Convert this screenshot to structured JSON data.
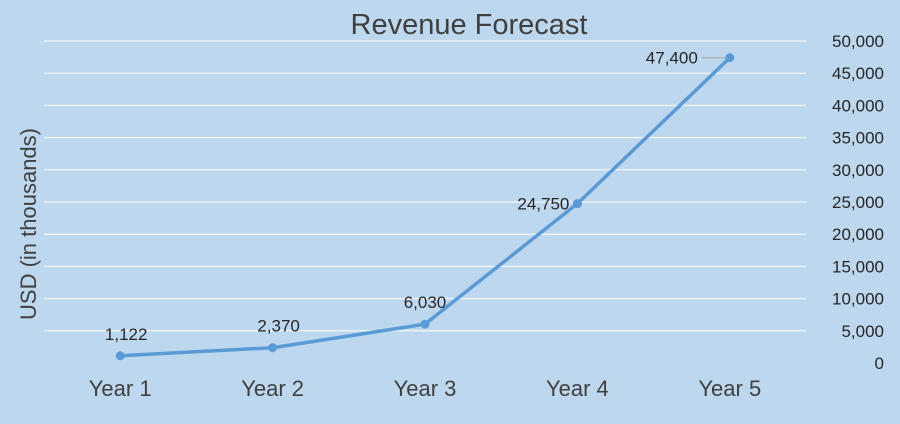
{
  "chart_data": {
    "type": "line",
    "title": "Revenue Forecast",
    "xlabel": "",
    "ylabel": "USD (in thousands)",
    "categories": [
      "Year 1",
      "Year 2",
      "Year 3",
      "Year 4",
      "Year 5"
    ],
    "series": [
      {
        "values": [
          1122,
          2370,
          6030,
          24750,
          47400
        ],
        "labels": [
          "1,122",
          "2,370",
          "6,030",
          "24,750",
          "47,400"
        ],
        "color": "#5b9bd5"
      }
    ],
    "ylim": [
      0,
      50000
    ],
    "yticks": [
      0,
      5000,
      10000,
      15000,
      20000,
      25000,
      30000,
      35000,
      40000,
      45000,
      50000
    ],
    "ytick_labels": [
      "0",
      "5,000",
      "10,000",
      "15,000",
      "20,000",
      "25,000",
      "30,000",
      "35,000",
      "40,000",
      "45,000",
      "50,000"
    ],
    "y_axis_side": "right",
    "grid": true,
    "legend": false,
    "background_color": "#bdd7ee"
  }
}
